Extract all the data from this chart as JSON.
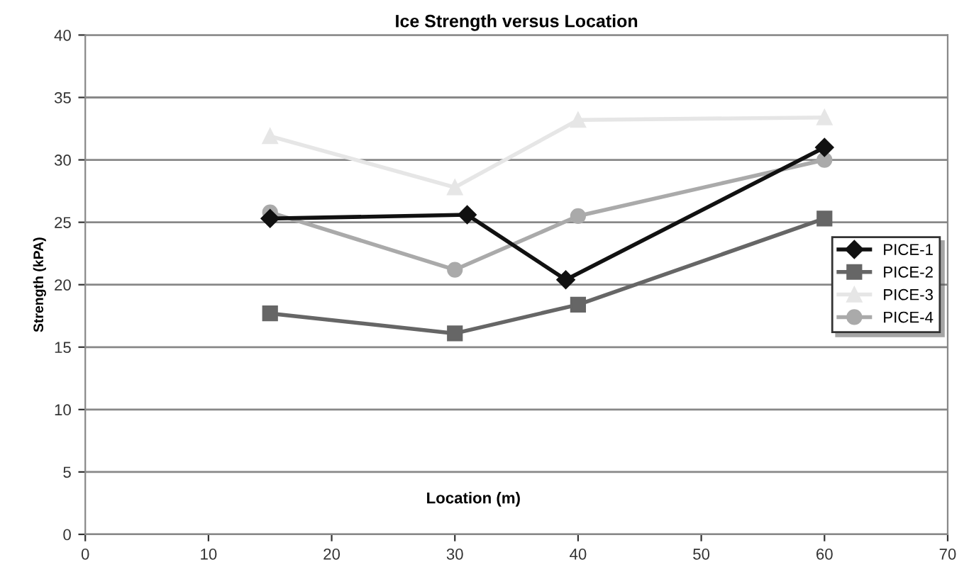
{
  "chart_data": {
    "type": "line",
    "title": "Ice Strength versus Location",
    "xlabel": "Location (m)",
    "ylabel": "Strength (kPA)",
    "xlim": [
      0,
      70
    ],
    "xticks": [
      0,
      10,
      20,
      30,
      40,
      50,
      60,
      70
    ],
    "ylim": [
      0,
      40
    ],
    "yticks": [
      0,
      5,
      10,
      15,
      20,
      25,
      30,
      35,
      40
    ],
    "grid": "y",
    "legend": "right",
    "series": [
      {
        "name": "PICE-1",
        "color": "#111111",
        "marker": "diamond",
        "x": [
          15,
          31,
          39,
          60
        ],
        "values": [
          25.3,
          25.6,
          20.4,
          31
        ]
      },
      {
        "name": "PICE-2",
        "color": "#666666",
        "marker": "square",
        "x": [
          15,
          30,
          40,
          60
        ],
        "values": [
          17.7,
          16.1,
          18.4,
          25.3
        ]
      },
      {
        "name": "PICE-3",
        "color": "#e6e6e6",
        "marker": "triangle",
        "x": [
          15,
          30,
          40,
          60
        ],
        "values": [
          31.9,
          27.8,
          33.2,
          33.4
        ]
      },
      {
        "name": "PICE-4",
        "color": "#aaaaaa",
        "marker": "circle",
        "x": [
          15,
          30,
          40,
          60
        ],
        "values": [
          25.8,
          21.2,
          25.5,
          30
        ]
      }
    ]
  }
}
